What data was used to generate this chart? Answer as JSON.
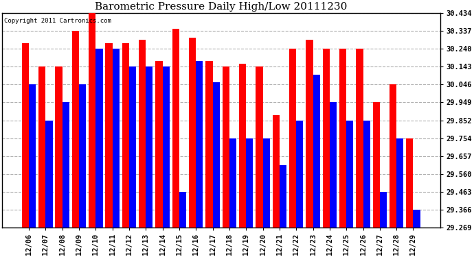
{
  "title": "Barometric Pressure Daily High/Low 20111230",
  "copyright": "Copyright 2011 Cartronics.com",
  "dates": [
    "12/06",
    "12/07",
    "12/08",
    "12/09",
    "12/10",
    "12/11",
    "12/12",
    "12/13",
    "12/14",
    "12/15",
    "12/16",
    "12/17",
    "12/18",
    "12/19",
    "12/20",
    "12/21",
    "12/22",
    "12/23",
    "12/24",
    "12/25",
    "12/26",
    "12/27",
    "12/28",
    "12/29"
  ],
  "highs": [
    30.27,
    30.143,
    30.143,
    30.337,
    30.434,
    30.27,
    30.27,
    30.29,
    30.175,
    30.35,
    30.3,
    30.175,
    30.143,
    30.16,
    30.143,
    29.88,
    30.24,
    30.29,
    30.24,
    30.24,
    30.24,
    29.949,
    30.046,
    29.754
  ],
  "lows": [
    30.046,
    29.852,
    29.949,
    30.046,
    30.24,
    30.24,
    30.143,
    30.143,
    30.143,
    29.463,
    30.175,
    30.06,
    29.754,
    29.754,
    29.754,
    29.608,
    29.852,
    30.1,
    29.949,
    29.852,
    29.852,
    29.463,
    29.754,
    29.366
  ],
  "high_color": "#ff0000",
  "low_color": "#0000ff",
  "background_color": "#ffffff",
  "grid_color": "#b0b0b0",
  "ylim_min": 29.269,
  "ylim_max": 30.434,
  "yticks": [
    29.269,
    29.366,
    29.463,
    29.56,
    29.657,
    29.754,
    29.852,
    29.949,
    30.046,
    30.143,
    30.24,
    30.337,
    30.434
  ]
}
